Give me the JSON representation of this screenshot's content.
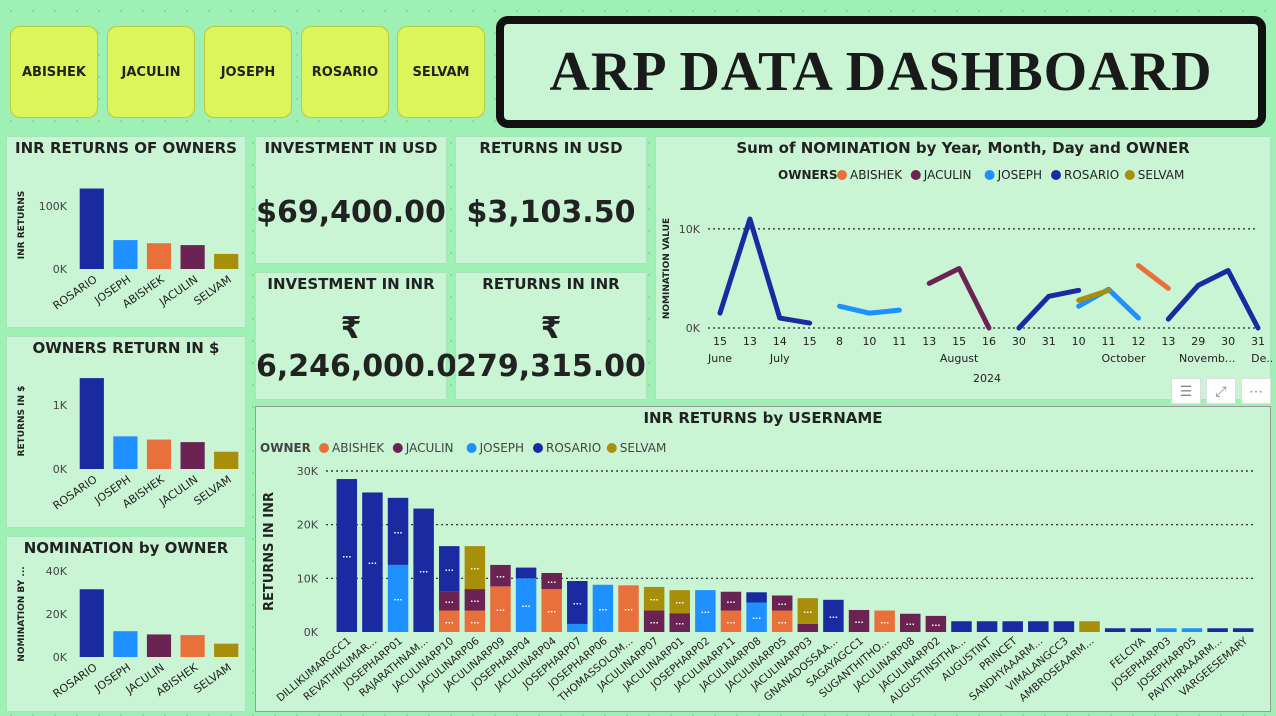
{
  "slicer": {
    "buttons": [
      {
        "label": "ABISHEK"
      },
      {
        "label": "JACULIN"
      },
      {
        "label": "JOSEPH"
      },
      {
        "label": "ROSARIO"
      },
      {
        "label": "SELVAM"
      }
    ]
  },
  "header": {
    "title": "ARP DATA DASHBOARD"
  },
  "colors": {
    "ROSARIO": "#1a2aa0",
    "JOSEPH": "#1e90ff",
    "ABISHEK": "#e8703a",
    "JACULIN": "#6a2352",
    "SELVAM": "#a88f0a"
  },
  "kpis": {
    "investment_usd": {
      "title": "INVESTMENT IN USD",
      "value": "$69,400.00"
    },
    "returns_usd": {
      "title": "RETURNS IN USD",
      "value": "$3,103.50"
    },
    "investment_inr": {
      "title": "INVESTMENT IN INR",
      "symbol": "₹",
      "value": "6,246,000.00"
    },
    "returns_inr": {
      "title": "RETURNS IN INR",
      "symbol": "₹",
      "value": "279,315.00"
    }
  },
  "chart_data": [
    {
      "id": "inr_returns_owners",
      "type": "bar",
      "title": "INR RETURNS OF OWNERS",
      "ylabel": "INR RETURNS",
      "categories": [
        "ROSARIO",
        "JOSEPH",
        "ABISHEK",
        "JACULIN",
        "SELVAM"
      ],
      "values": [
        128000,
        46000,
        41000,
        38000,
        24000
      ],
      "ylim": [
        0,
        140000
      ],
      "yticks": [
        {
          "v": 0,
          "label": "0K"
        },
        {
          "v": 100000,
          "label": "100K"
        }
      ]
    },
    {
      "id": "owners_return_usd",
      "type": "bar",
      "title": "OWNERS RETURN IN $",
      "ylabel": "RETURNS IN $",
      "categories": [
        "ROSARIO",
        "JOSEPH",
        "ABISHEK",
        "JACULIN",
        "SELVAM"
      ],
      "values": [
        1420,
        510,
        460,
        420,
        270
      ],
      "ylim": [
        0,
        1500
      ],
      "yticks": [
        {
          "v": 0,
          "label": "0K"
        },
        {
          "v": 1000,
          "label": "1K"
        }
      ]
    },
    {
      "id": "nomination_by_owner",
      "type": "bar",
      "title": "NOMINATION by OWNER",
      "ylabel": "NOMINATION BY ...",
      "categories": [
        "ROSARIO",
        "JOSEPH",
        "JACULIN",
        "ABISHEK",
        "SELVAM"
      ],
      "values": [
        31500,
        12000,
        10500,
        10200,
        6200
      ],
      "ylim": [
        0,
        40000
      ],
      "yticks": [
        {
          "v": 0,
          "label": "0K"
        },
        {
          "v": 20000,
          "label": "20K"
        },
        {
          "v": 40000,
          "label": "40K"
        }
      ]
    },
    {
      "id": "nomination_timeline",
      "type": "line",
      "title": "Sum of NOMINATION by Year, Month, Day and OWNER",
      "legend_title": "OWNERS",
      "legend": [
        "ABISHEK",
        "JACULIN",
        "JOSEPH",
        "ROSARIO",
        "SELVAM"
      ],
      "ylabel": "NOMINATION VALUE",
      "ylim": [
        0,
        11000
      ],
      "yticks": [
        {
          "v": 0,
          "label": "0K"
        },
        {
          "v": 10000,
          "label": "10K"
        }
      ],
      "x_ticks": [
        "15",
        "13",
        "14",
        "15",
        "8",
        "10",
        "11",
        "13",
        "15",
        "16",
        "30",
        "31",
        "10",
        "11",
        "12",
        "13",
        "29",
        "30",
        "31"
      ],
      "months": [
        {
          "label": "June",
          "at": 0
        },
        {
          "label": "July",
          "at": 2
        },
        {
          "label": "August",
          "at": 8
        },
        {
          "label": "October",
          "at": 13.5
        },
        {
          "label": "Novemb...",
          "at": 16.3
        },
        {
          "label": "De...",
          "at": 18.2
        }
      ],
      "year": "2024",
      "series": [
        {
          "name": "ROSARIO",
          "points": [
            [
              0,
              1500
            ],
            [
              1,
              11000
            ],
            [
              2,
              1000
            ],
            [
              3,
              500
            ]
          ]
        },
        {
          "name": "JOSEPH",
          "points": [
            [
              4,
              2200
            ],
            [
              5,
              1500
            ],
            [
              6,
              1800
            ]
          ]
        },
        {
          "name": "JACULIN",
          "points": [
            [
              7,
              4500
            ],
            [
              8,
              6000
            ],
            [
              9,
              0
            ]
          ]
        },
        {
          "name": "ROSARIO",
          "points": [
            [
              10,
              0
            ],
            [
              11,
              3200
            ],
            [
              12,
              3800
            ]
          ]
        },
        {
          "name": "JOSEPH",
          "points": [
            [
              12,
              2200
            ],
            [
              13,
              3900
            ],
            [
              14,
              1000
            ]
          ]
        },
        {
          "name": "SELVAM",
          "points": [
            [
              12,
              2800
            ],
            [
              13,
              3800
            ]
          ]
        },
        {
          "name": "ABISHEK",
          "points": [
            [
              14,
              6300
            ],
            [
              15,
              4000
            ]
          ]
        },
        {
          "name": "ROSARIO",
          "points": [
            [
              15,
              900
            ],
            [
              16,
              4300
            ],
            [
              17,
              5800
            ],
            [
              18,
              0
            ]
          ]
        }
      ]
    },
    {
      "id": "inr_returns_by_username",
      "type": "bar",
      "title": "INR RETURNS by USERNAME",
      "legend_title": "OWNER",
      "legend": [
        "ABISHEK",
        "JACULIN",
        "JOSEPH",
        "ROSARIO",
        "SELVAM"
      ],
      "ylabel": "RETURNS IN INR",
      "ylim": [
        0,
        30000
      ],
      "yticks": [
        {
          "v": 0,
          "label": "0K"
        },
        {
          "v": 10000,
          "label": "10K"
        },
        {
          "v": 20000,
          "label": "20K"
        },
        {
          "v": 30000,
          "label": "30K"
        }
      ],
      "bars": [
        {
          "label": "DILLIKUMARGCC1",
          "segs": [
            [
              "ROSARIO",
              28500
            ]
          ]
        },
        {
          "label": "REVATHIKUMAR...",
          "segs": [
            [
              "ROSARIO",
              26000
            ]
          ]
        },
        {
          "label": "JOSEPHARP01",
          "segs": [
            [
              "JOSEPH",
              12500
            ],
            [
              "ROSARIO",
              12500
            ]
          ]
        },
        {
          "label": "RAJARATHNAM...",
          "segs": [
            [
              "ROSARIO",
              23000
            ]
          ]
        },
        {
          "label": "JACULINARP10",
          "segs": [
            [
              "ABISHEK",
              4000
            ],
            [
              "JACULIN",
              3500
            ],
            [
              "ROSARIO",
              8500
            ]
          ]
        },
        {
          "label": "JACULINARP06",
          "segs": [
            [
              "ABISHEK",
              4000
            ],
            [
              "JACULIN",
              4000
            ],
            [
              "SELVAM",
              8000
            ]
          ]
        },
        {
          "label": "JACULINARP09",
          "segs": [
            [
              "ABISHEK",
              8500
            ],
            [
              "JACULIN",
              4000
            ]
          ]
        },
        {
          "label": "JOSEPHARP04",
          "segs": [
            [
              "JOSEPH",
              10000
            ],
            [
              "ROSARIO",
              2000
            ]
          ]
        },
        {
          "label": "JACULINARP04",
          "segs": [
            [
              "ABISHEK",
              8000
            ],
            [
              "JACULIN",
              3000
            ]
          ]
        },
        {
          "label": "JOSEPHARP07",
          "segs": [
            [
              "JOSEPH",
              1500
            ],
            [
              "ROSARIO",
              8000
            ]
          ]
        },
        {
          "label": "JOSEPHARP06",
          "segs": [
            [
              "JOSEPH",
              8800
            ]
          ]
        },
        {
          "label": "THOMASSOLOM...",
          "segs": [
            [
              "ABISHEK",
              8700
            ]
          ]
        },
        {
          "label": "JACULINARP07",
          "segs": [
            [
              "JACULIN",
              4000
            ],
            [
              "SELVAM",
              4400
            ]
          ]
        },
        {
          "label": "JACULINARP01",
          "segs": [
            [
              "JACULIN",
              3500
            ],
            [
              "SELVAM",
              4300
            ]
          ]
        },
        {
          "label": "JOSEPHARP02",
          "segs": [
            [
              "JOSEPH",
              7800
            ]
          ]
        },
        {
          "label": "JACULINARP11",
          "segs": [
            [
              "ABISHEK",
              4000
            ],
            [
              "JACULIN",
              3500
            ]
          ]
        },
        {
          "label": "JACULINARP08",
          "segs": [
            [
              "JOSEPH",
              5500
            ],
            [
              "ROSARIO",
              1900
            ]
          ]
        },
        {
          "label": "JACULINARP05",
          "segs": [
            [
              "ABISHEK",
              4000
            ],
            [
              "JACULIN",
              2800
            ]
          ]
        },
        {
          "label": "JACULINARP03",
          "segs": [
            [
              "JACULIN",
              1500
            ],
            [
              "SELVAM",
              4800
            ]
          ]
        },
        {
          "label": "GNANADOSSAA...",
          "segs": [
            [
              "ROSARIO",
              6000
            ]
          ]
        },
        {
          "label": "SAGAYAGCC1",
          "segs": [
            [
              "JACULIN",
              4100
            ]
          ]
        },
        {
          "label": "SUGANTHITHO...",
          "segs": [
            [
              "ABISHEK",
              4000
            ]
          ]
        },
        {
          "label": "JACULINARP08",
          "segs": [
            [
              "JACULIN",
              3400
            ]
          ]
        },
        {
          "label": "JACULINARP02",
          "segs": [
            [
              "JACULIN",
              3000
            ]
          ]
        },
        {
          "label": "AUGUSTINSITHA...",
          "segs": [
            [
              "ROSARIO",
              2000
            ]
          ]
        },
        {
          "label": "AUGUSTINT",
          "segs": [
            [
              "ROSARIO",
              2000
            ]
          ]
        },
        {
          "label": "PRINCET",
          "segs": [
            [
              "ROSARIO",
              2000
            ]
          ]
        },
        {
          "label": "SANDHYAAARM...",
          "segs": [
            [
              "ROSARIO",
              2000
            ]
          ]
        },
        {
          "label": "VIMALANGCC3",
          "segs": [
            [
              "ROSARIO",
              2000
            ]
          ]
        },
        {
          "label": "AMBROSEAARM...",
          "segs": [
            [
              "SELVAM",
              2000
            ]
          ]
        },
        {
          "label": "",
          "segs": [
            [
              "ROSARIO",
              700
            ]
          ]
        },
        {
          "label": "FELCIYA",
          "segs": [
            [
              "ROSARIO",
              700
            ]
          ]
        },
        {
          "label": "JOSEPHARP03",
          "segs": [
            [
              "JOSEPH",
              700
            ]
          ]
        },
        {
          "label": "JOSEPHARP05",
          "segs": [
            [
              "JOSEPH",
              700
            ]
          ]
        },
        {
          "label": "PAVITHRAAARM...",
          "segs": [
            [
              "ROSARIO",
              700
            ]
          ]
        },
        {
          "label": "VARGEESEMARY",
          "segs": [
            [
              "ROSARIO",
              700
            ]
          ]
        }
      ]
    }
  ]
}
